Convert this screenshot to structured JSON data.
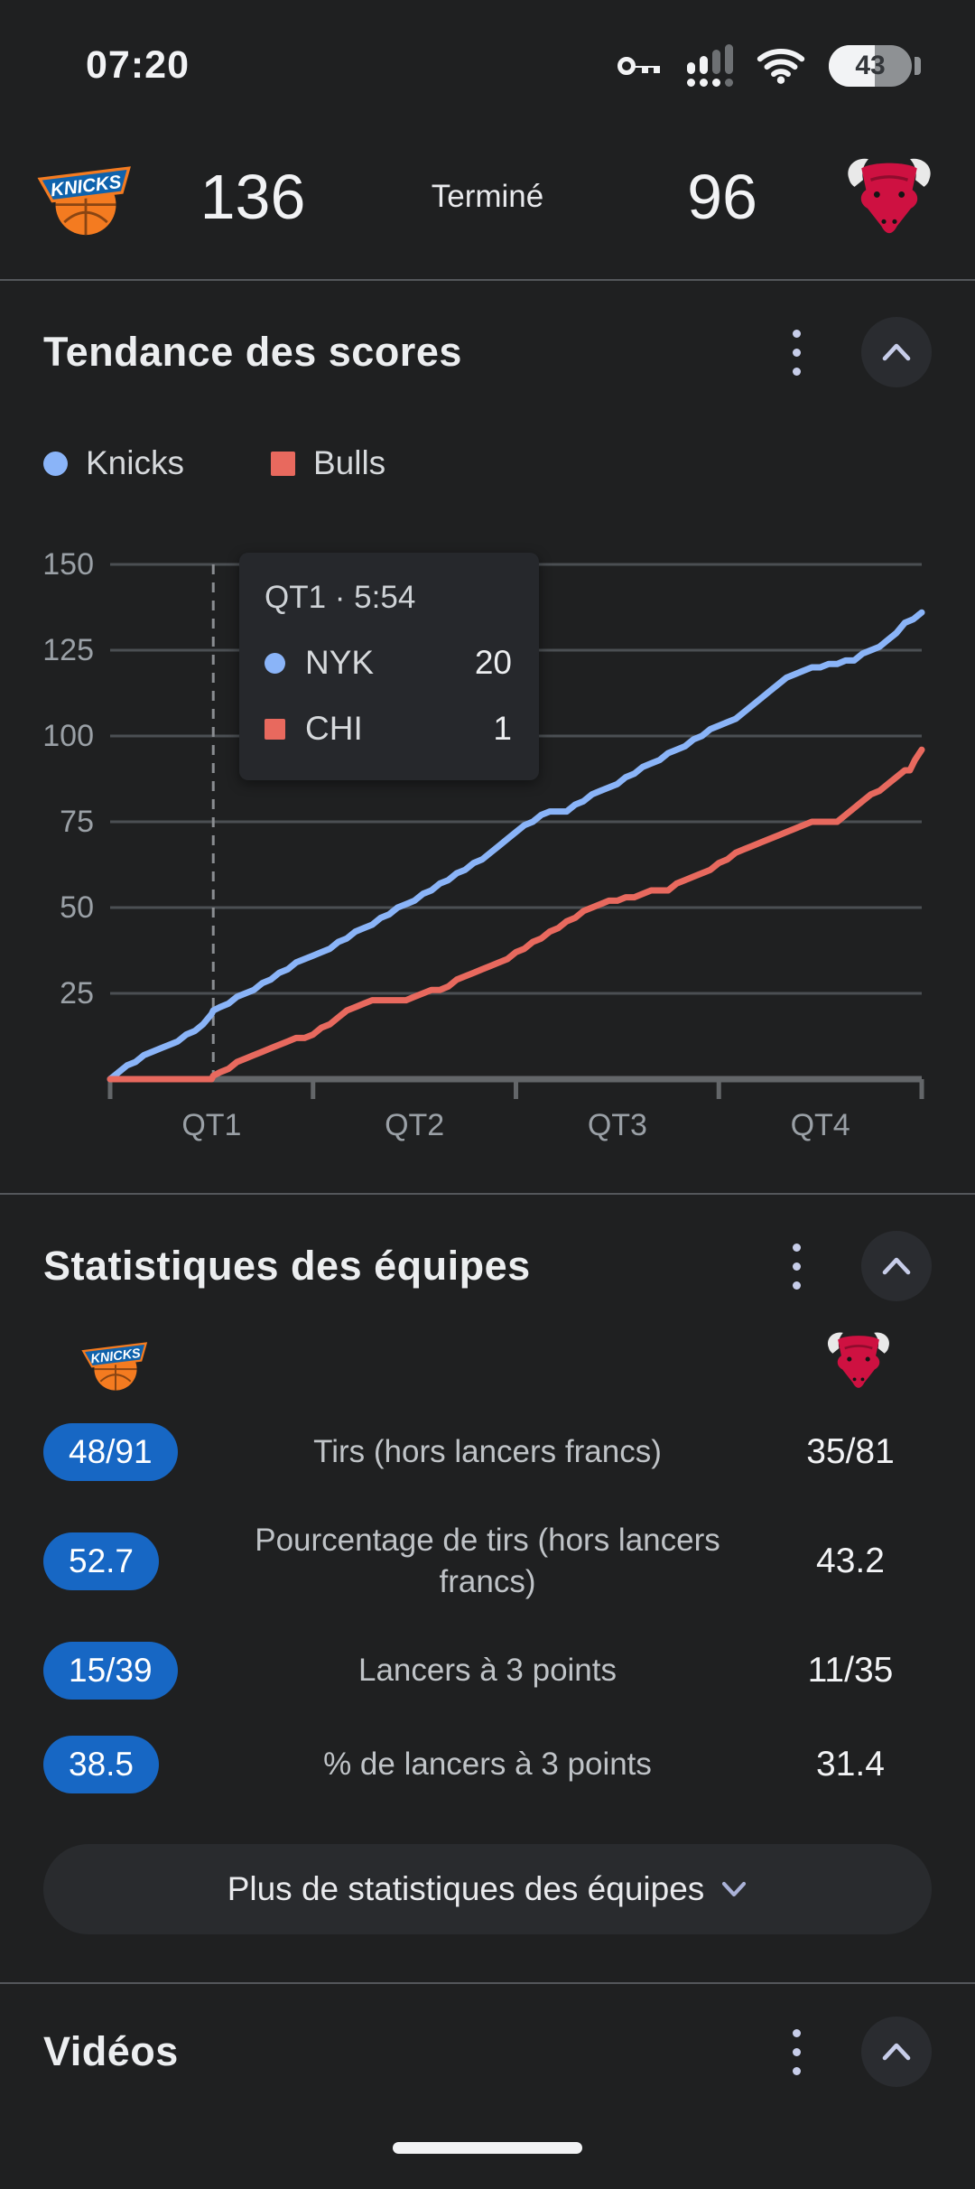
{
  "status_bar": {
    "time": "07:20",
    "battery_level": "43"
  },
  "scoreboard": {
    "home_team": "Knicks",
    "away_team": "Bulls",
    "home_score": "136",
    "away_score": "96",
    "status": "Terminé"
  },
  "score_trend": {
    "title": "Tendance des scores",
    "legend": [
      {
        "label": "Knicks",
        "color": "#8ab4f8",
        "marker": "circle"
      },
      {
        "label": "Bulls",
        "color": "#e8695e",
        "marker": "square"
      }
    ],
    "tooltip": {
      "title": "QT1 · 5:54",
      "rows": [
        {
          "team": "NYK",
          "value": "20",
          "color": "#8ab4f8",
          "marker": "circle"
        },
        {
          "team": "CHI",
          "value": "1",
          "color": "#e8695e",
          "marker": "square"
        }
      ]
    }
  },
  "chart_data": {
    "type": "line",
    "title": "Tendance des scores",
    "xlabel": "",
    "ylabel": "",
    "x_axis": {
      "unit": "game minutes",
      "range": [
        0,
        48
      ],
      "tick_positions": [
        0,
        12,
        24,
        36,
        48
      ],
      "label_positions": [
        6,
        18,
        30,
        42
      ],
      "labels": [
        "QT1",
        "QT2",
        "QT3",
        "QT4"
      ]
    },
    "y_axis": {
      "range": [
        0,
        150
      ],
      "ticks": [
        25,
        50,
        75,
        100,
        125,
        150
      ]
    },
    "grid": true,
    "annotation_line": {
      "x": 6.1,
      "style": "dashed",
      "label": "QT1 · 5:54"
    },
    "series": [
      {
        "name": "NYK",
        "color": "#8ab4f8",
        "final_score": 136,
        "points": [
          [
            0,
            0
          ],
          [
            0.5,
            2
          ],
          [
            1,
            4
          ],
          [
            1.5,
            5
          ],
          [
            2,
            7
          ],
          [
            2.5,
            8
          ],
          [
            3,
            9
          ],
          [
            3.5,
            10
          ],
          [
            4,
            11
          ],
          [
            4.5,
            13
          ],
          [
            5,
            14
          ],
          [
            5.5,
            16
          ],
          [
            6,
            19
          ],
          [
            6.1,
            20
          ],
          [
            6.5,
            21
          ],
          [
            7,
            22
          ],
          [
            7.5,
            24
          ],
          [
            8,
            25
          ],
          [
            8.5,
            26
          ],
          [
            9,
            28
          ],
          [
            9.5,
            29
          ],
          [
            10,
            31
          ],
          [
            10.5,
            32
          ],
          [
            11,
            34
          ],
          [
            11.5,
            35
          ],
          [
            12,
            36
          ],
          [
            12.5,
            37
          ],
          [
            13,
            38
          ],
          [
            13.5,
            40
          ],
          [
            14,
            41
          ],
          [
            14.5,
            43
          ],
          [
            15,
            44
          ],
          [
            15.5,
            45
          ],
          [
            16,
            47
          ],
          [
            16.5,
            48
          ],
          [
            17,
            50
          ],
          [
            17.5,
            51
          ],
          [
            18,
            52
          ],
          [
            18.5,
            54
          ],
          [
            19,
            55
          ],
          [
            19.5,
            57
          ],
          [
            20,
            58
          ],
          [
            20.5,
            60
          ],
          [
            21,
            61
          ],
          [
            21.5,
            63
          ],
          [
            22,
            64
          ],
          [
            22.5,
            66
          ],
          [
            23,
            68
          ],
          [
            23.5,
            70
          ],
          [
            24,
            72
          ],
          [
            24.5,
            74
          ],
          [
            25,
            75
          ],
          [
            25.5,
            77
          ],
          [
            26,
            78
          ],
          [
            27,
            78
          ],
          [
            27.5,
            80
          ],
          [
            28,
            81
          ],
          [
            28.5,
            83
          ],
          [
            29,
            84
          ],
          [
            29.5,
            85
          ],
          [
            30,
            86
          ],
          [
            30.5,
            88
          ],
          [
            31,
            89
          ],
          [
            31.5,
            91
          ],
          [
            32,
            92
          ],
          [
            32.5,
            93
          ],
          [
            33,
            95
          ],
          [
            33.5,
            96
          ],
          [
            34,
            97
          ],
          [
            34.5,
            99
          ],
          [
            35,
            100
          ],
          [
            35.5,
            102
          ],
          [
            36,
            103
          ],
          [
            36.5,
            104
          ],
          [
            37,
            105
          ],
          [
            37.5,
            107
          ],
          [
            38,
            109
          ],
          [
            38.5,
            111
          ],
          [
            39,
            113
          ],
          [
            39.5,
            115
          ],
          [
            40,
            117
          ],
          [
            40.5,
            118
          ],
          [
            41,
            119
          ],
          [
            41.5,
            120
          ],
          [
            42,
            120
          ],
          [
            42.5,
            121
          ],
          [
            43,
            121
          ],
          [
            43.5,
            122
          ],
          [
            44,
            122
          ],
          [
            44.5,
            124
          ],
          [
            45,
            125
          ],
          [
            45.5,
            126
          ],
          [
            46,
            128
          ],
          [
            46.5,
            130
          ],
          [
            47,
            133
          ],
          [
            47.5,
            134
          ],
          [
            48,
            136
          ]
        ]
      },
      {
        "name": "CHI",
        "color": "#e8695e",
        "final_score": 96,
        "points": [
          [
            0,
            0
          ],
          [
            6,
            0
          ],
          [
            6.1,
            1
          ],
          [
            6.5,
            2
          ],
          [
            7,
            3
          ],
          [
            7.5,
            5
          ],
          [
            8,
            6
          ],
          [
            8.5,
            7
          ],
          [
            9,
            8
          ],
          [
            9.5,
            9
          ],
          [
            10,
            10
          ],
          [
            10.5,
            11
          ],
          [
            11,
            12
          ],
          [
            11.5,
            12
          ],
          [
            12,
            13
          ],
          [
            12.5,
            15
          ],
          [
            13,
            16
          ],
          [
            13.5,
            18
          ],
          [
            14,
            20
          ],
          [
            14.5,
            21
          ],
          [
            15,
            22
          ],
          [
            15.5,
            23
          ],
          [
            17.5,
            23
          ],
          [
            18,
            24
          ],
          [
            18.5,
            25
          ],
          [
            19,
            26
          ],
          [
            19.5,
            26
          ],
          [
            20,
            27
          ],
          [
            20.5,
            29
          ],
          [
            21,
            30
          ],
          [
            21.5,
            31
          ],
          [
            22,
            32
          ],
          [
            22.5,
            33
          ],
          [
            23,
            34
          ],
          [
            23.5,
            35
          ],
          [
            24,
            37
          ],
          [
            24.5,
            38
          ],
          [
            25,
            40
          ],
          [
            25.5,
            41
          ],
          [
            26,
            43
          ],
          [
            26.5,
            44
          ],
          [
            27,
            46
          ],
          [
            27.5,
            47
          ],
          [
            28,
            49
          ],
          [
            28.5,
            50
          ],
          [
            29,
            51
          ],
          [
            29.5,
            52
          ],
          [
            30,
            52
          ],
          [
            30.5,
            53
          ],
          [
            31,
            53
          ],
          [
            31.5,
            54
          ],
          [
            32,
            55
          ],
          [
            33,
            55
          ],
          [
            33.5,
            57
          ],
          [
            34,
            58
          ],
          [
            34.5,
            59
          ],
          [
            35,
            60
          ],
          [
            35.5,
            61
          ],
          [
            36,
            63
          ],
          [
            36.5,
            64
          ],
          [
            37,
            66
          ],
          [
            37.5,
            67
          ],
          [
            38,
            68
          ],
          [
            38.5,
            69
          ],
          [
            39,
            70
          ],
          [
            39.5,
            71
          ],
          [
            40,
            72
          ],
          [
            40.5,
            73
          ],
          [
            41,
            74
          ],
          [
            41.5,
            75
          ],
          [
            43,
            75
          ],
          [
            43.5,
            77
          ],
          [
            44,
            79
          ],
          [
            44.5,
            81
          ],
          [
            45,
            83
          ],
          [
            45.5,
            84
          ],
          [
            46,
            86
          ],
          [
            46.5,
            88
          ],
          [
            47,
            90
          ],
          [
            47.3,
            90
          ],
          [
            47.6,
            93
          ],
          [
            48,
            96
          ]
        ]
      }
    ],
    "legend_position": "top-left"
  },
  "team_stats": {
    "title": "Statistiques des équipes",
    "rows": [
      {
        "home": "48/91",
        "label": "Tirs (hors lancers francs)",
        "away": "35/81"
      },
      {
        "home": "52.7",
        "label": "Pourcentage de tirs (hors lancers francs)",
        "away": "43.2"
      },
      {
        "home": "15/39",
        "label": "Lancers à 3 points",
        "away": "11/35"
      },
      {
        "home": "38.5",
        "label": "% de lancers à 3 points",
        "away": "31.4"
      }
    ],
    "more_button": "Plus de statistiques des équipes"
  },
  "videos": {
    "title": "Vidéos"
  }
}
